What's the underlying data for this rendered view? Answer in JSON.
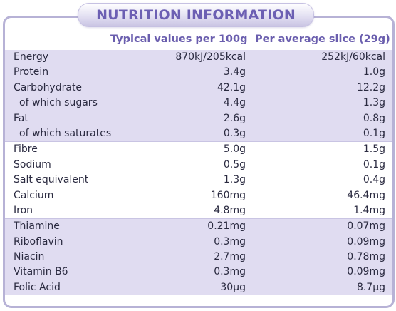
{
  "title": "NUTRITION INFORMATION",
  "columns": {
    "per_100g": "Typical values per 100g",
    "per_slice": "Per average slice (29g)"
  },
  "colors": {
    "accent": "#6c5fb3",
    "shade": "#e0dcf1",
    "border": "#b7b2d6"
  },
  "rows": [
    {
      "label": "Energy",
      "per_100g": "870kJ/205kcal",
      "per_slice": "252kJ/60kcal"
    },
    {
      "label": "Protein",
      "per_100g": "3.4g",
      "per_slice": "1.0g"
    },
    {
      "label": "Carbohydrate",
      "per_100g": "42.1g",
      "per_slice": "12.2g"
    },
    {
      "label": "of which sugars",
      "per_100g": "4.4g",
      "per_slice": "1.3g"
    },
    {
      "label": "Fat",
      "per_100g": "2.6g",
      "per_slice": "0.8g"
    },
    {
      "label": "of which saturates",
      "per_100g": "0.3g",
      "per_slice": "0.1g"
    },
    {
      "label": "Fibre",
      "per_100g": "5.0g",
      "per_slice": "1.5g"
    },
    {
      "label": "Sodium",
      "per_100g": "0.5g",
      "per_slice": "0.1g"
    },
    {
      "label": "Salt equivalent",
      "per_100g": "1.3g",
      "per_slice": "0.4g"
    },
    {
      "label": "Calcium",
      "per_100g": "160mg",
      "per_slice": "46.4mg"
    },
    {
      "label": "Iron",
      "per_100g": "4.8mg",
      "per_slice": "1.4mg"
    },
    {
      "label": "Thiamine",
      "per_100g": "0.21mg",
      "per_slice": "0.07mg"
    },
    {
      "label": "Riboflavin",
      "per_100g": "0.3mg",
      "per_slice": "0.09mg"
    },
    {
      "label": "Niacin",
      "per_100g": "2.7mg",
      "per_slice": "0.78mg"
    },
    {
      "label": "Vitamin B6",
      "per_100g": "0.3mg",
      "per_slice": "0.09mg"
    },
    {
      "label": "Folic Acid",
      "per_100g": "30µg",
      "per_slice": "8.7µg"
    }
  ]
}
